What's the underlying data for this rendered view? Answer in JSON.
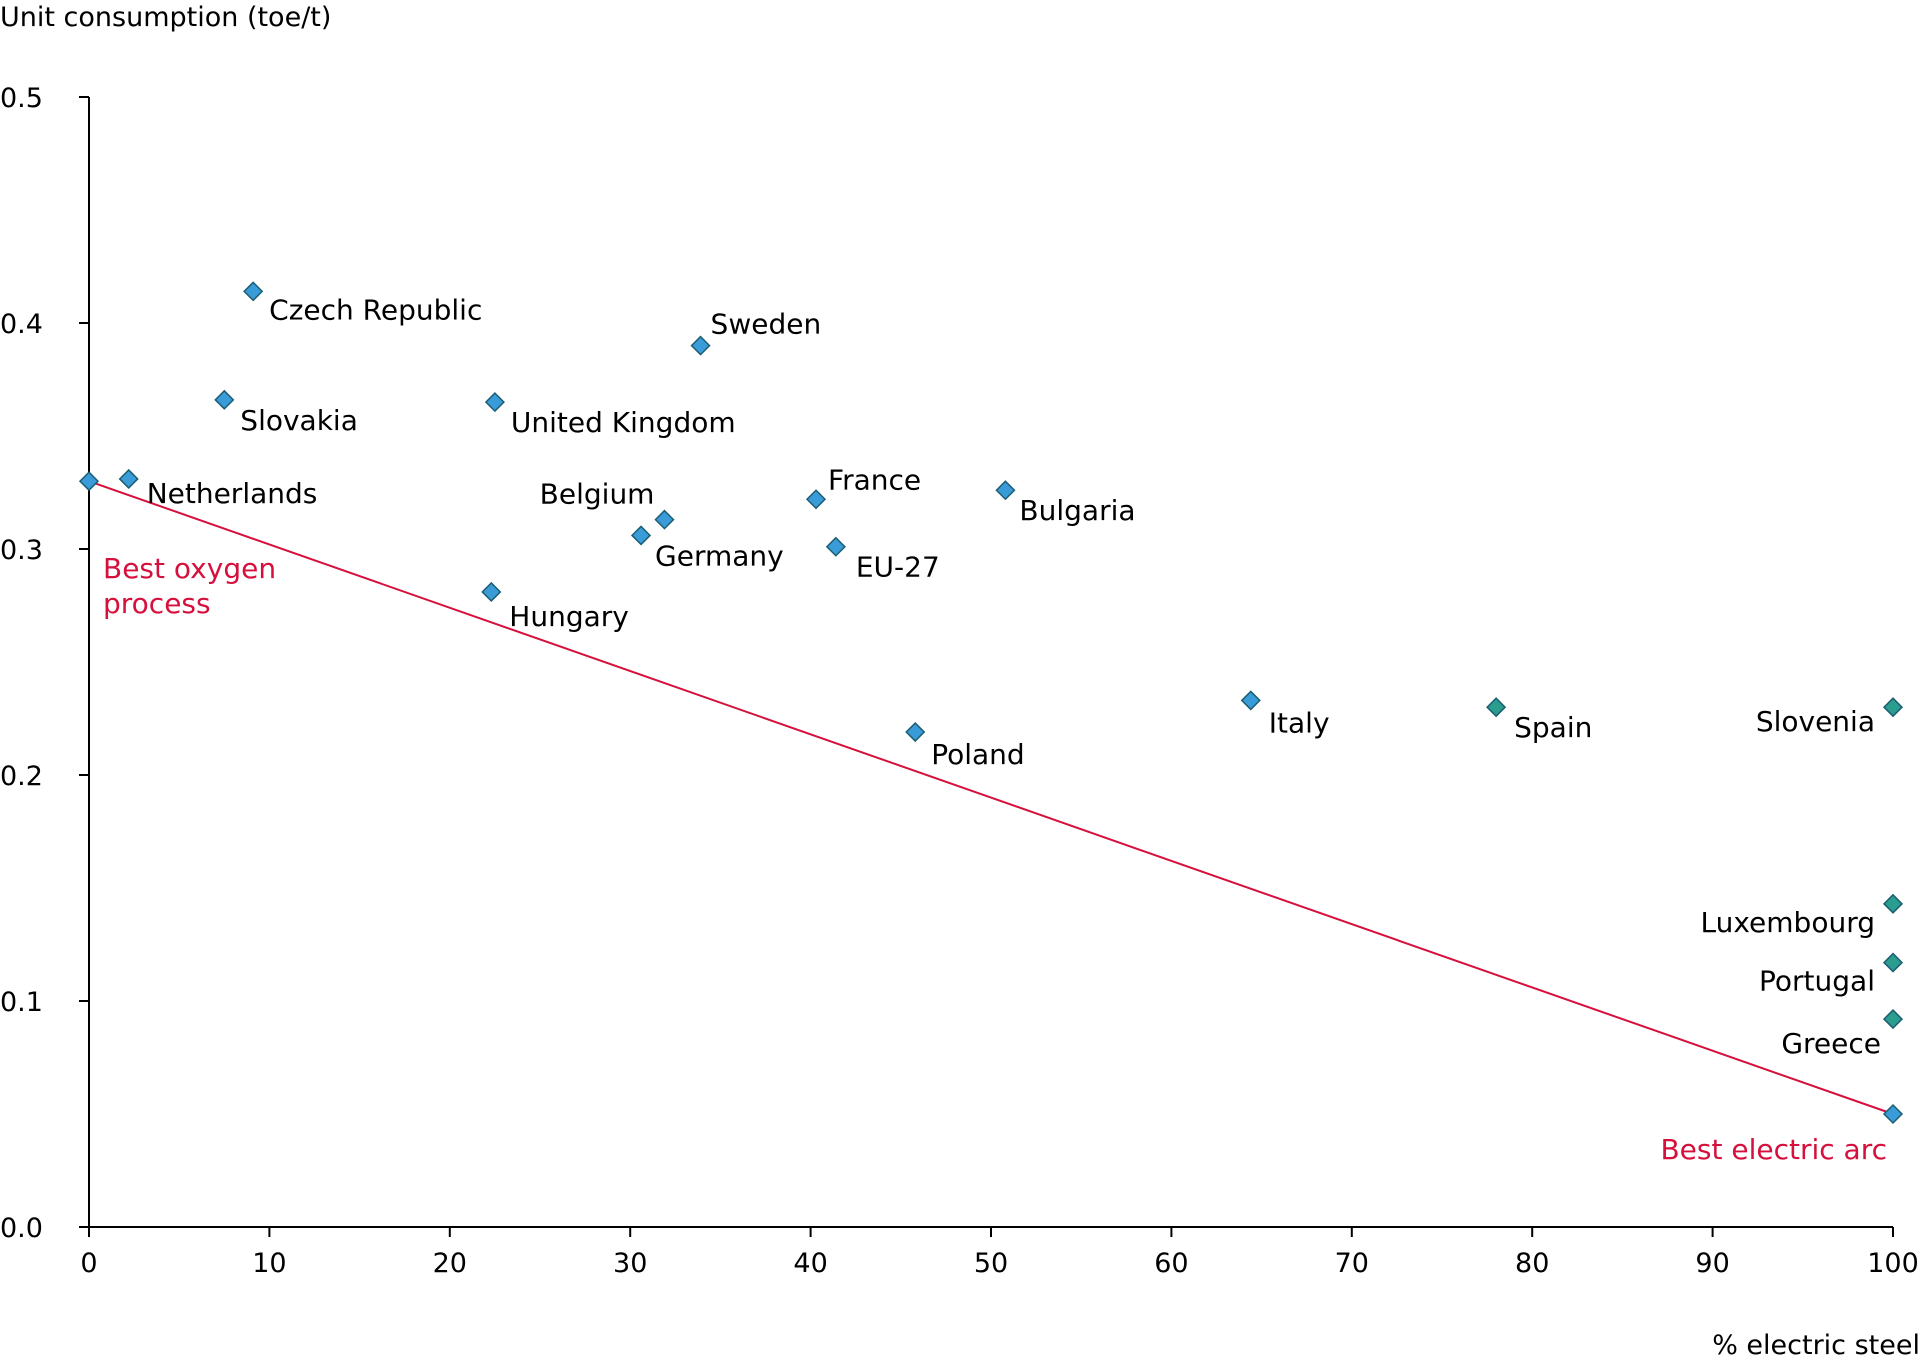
{
  "colors": {
    "marker_blue": "#3a9bd9",
    "marker_teal": "#2a9d8f",
    "marker_stroke": "#1b5e72",
    "accent_red": "#d6103c",
    "axis": "#000000"
  },
  "chart_data": {
    "type": "scatter",
    "title": "",
    "xlabel": "% electric steel",
    "ylabel": "Unit consumption (toe/t)",
    "xlim": [
      0,
      100
    ],
    "ylim": [
      0,
      0.5
    ],
    "xticks": [
      "0",
      "10",
      "20",
      "30",
      "40",
      "50",
      "60",
      "70",
      "80",
      "90",
      "100"
    ],
    "yticks": [
      "0.0",
      "0.1",
      "0.2",
      "0.3",
      "0.4",
      "0.5"
    ],
    "grid": false,
    "legend": "none",
    "points": [
      {
        "label": "",
        "x": 0,
        "y": 0.33,
        "color": "blue"
      },
      {
        "label": "Netherlands",
        "x": 2.2,
        "y": 0.331,
        "color": "blue"
      },
      {
        "label": "Slovakia",
        "x": 7.5,
        "y": 0.366,
        "color": "blue"
      },
      {
        "label": "Czech Republic",
        "x": 9.1,
        "y": 0.414,
        "color": "blue"
      },
      {
        "label": "Hungary",
        "x": 22.3,
        "y": 0.281,
        "color": "blue"
      },
      {
        "label": "United Kingdom",
        "x": 22.5,
        "y": 0.365,
        "color": "blue"
      },
      {
        "label": "Germany",
        "x": 30.6,
        "y": 0.306,
        "color": "blue"
      },
      {
        "label": "Belgium",
        "x": 31.9,
        "y": 0.313,
        "color": "blue"
      },
      {
        "label": "Sweden",
        "x": 33.9,
        "y": 0.39,
        "color": "blue"
      },
      {
        "label": "France",
        "x": 40.3,
        "y": 0.322,
        "color": "blue"
      },
      {
        "label": "EU-27",
        "x": 41.4,
        "y": 0.301,
        "color": "blue",
        "highlight": true
      },
      {
        "label": "Poland",
        "x": 45.8,
        "y": 0.219,
        "color": "blue"
      },
      {
        "label": "Bulgaria",
        "x": 50.8,
        "y": 0.326,
        "color": "blue"
      },
      {
        "label": "Italy",
        "x": 64.4,
        "y": 0.233,
        "color": "blue"
      },
      {
        "label": "Spain",
        "x": 78,
        "y": 0.23,
        "color": "teal"
      },
      {
        "label": "Slovenia",
        "x": 100,
        "y": 0.23,
        "color": "teal"
      },
      {
        "label": "Luxembourg",
        "x": 100,
        "y": 0.143,
        "color": "teal"
      },
      {
        "label": "Portugal",
        "x": 100,
        "y": 0.117,
        "color": "teal"
      },
      {
        "label": "Greece",
        "x": 100,
        "y": 0.092,
        "color": "teal"
      },
      {
        "label": "",
        "x": 100,
        "y": 0.05,
        "color": "blue"
      }
    ],
    "reference_line": {
      "x": [
        0,
        100
      ],
      "y": [
        0.33,
        0.05
      ]
    },
    "annotations": [
      {
        "text": "Best oxygen",
        "line2": "process"
      },
      {
        "text": "Best electric arc"
      }
    ]
  }
}
